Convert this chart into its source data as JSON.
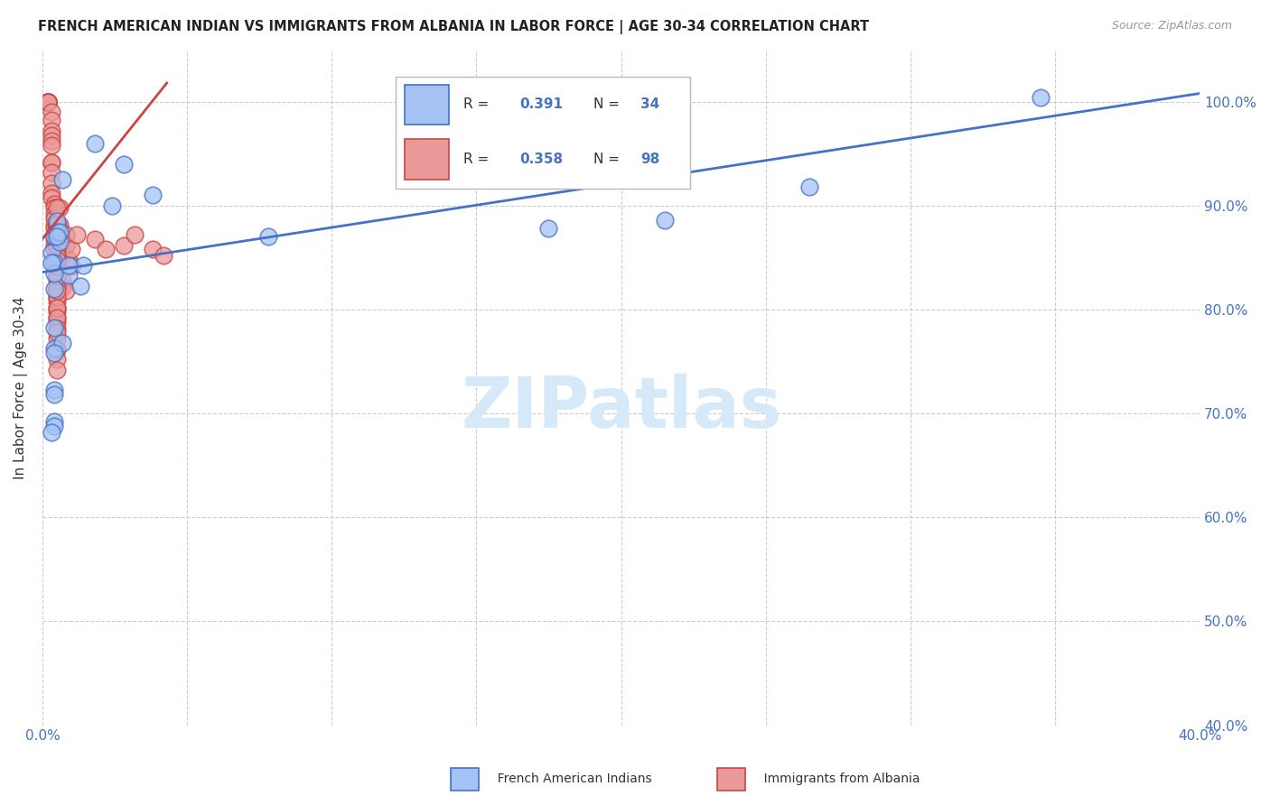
{
  "title": "FRENCH AMERICAN INDIAN VS IMMIGRANTS FROM ALBANIA IN LABOR FORCE | AGE 30-34 CORRELATION CHART",
  "source": "Source: ZipAtlas.com",
  "ylabel": "In Labor Force | Age 30-34",
  "xlim": [
    0.0,
    0.4
  ],
  "ylim": [
    0.4,
    1.05
  ],
  "xtick_positions": [
    0.0,
    0.05,
    0.1,
    0.15,
    0.2,
    0.25,
    0.3,
    0.35,
    0.4
  ],
  "xticklabels": [
    "0.0%",
    "",
    "",
    "",
    "",
    "",
    "",
    "",
    "40.0%"
  ],
  "ytick_positions": [
    0.4,
    0.5,
    0.6,
    0.7,
    0.8,
    0.9,
    1.0
  ],
  "yticklabels": [
    "40.0%",
    "50.0%",
    "60.0%",
    "70.0%",
    "80.0%",
    "90.0%",
    "100.0%"
  ],
  "legend_val1": "0.391",
  "legend_nval1": "34",
  "legend_val2": "0.358",
  "legend_nval2": "98",
  "color_blue_fill": "#a4c2f4",
  "color_pink_fill": "#ea9999",
  "color_blue_edge": "#4472c4",
  "color_pink_edge": "#cc4444",
  "color_blue_line": "#4472c4",
  "color_pink_line": "#cc4444",
  "color_axis_text": "#4472c4",
  "watermark_color": "#d6e9f8",
  "blue_scatter_x": [
    0.003,
    0.005,
    0.007,
    0.004,
    0.006,
    0.018,
    0.028,
    0.004,
    0.009,
    0.014,
    0.024,
    0.038,
    0.078,
    0.004,
    0.009,
    0.004,
    0.007,
    0.013,
    0.004,
    0.004,
    0.004,
    0.004,
    0.004,
    0.004,
    0.003,
    0.004,
    0.005,
    0.006,
    0.005,
    0.175,
    0.215,
    0.265,
    0.345,
    0.003
  ],
  "blue_scatter_y": [
    0.855,
    0.885,
    0.925,
    0.845,
    0.865,
    0.96,
    0.94,
    0.82,
    0.833,
    0.843,
    0.9,
    0.91,
    0.87,
    0.835,
    0.843,
    0.763,
    0.768,
    0.823,
    0.783,
    0.758,
    0.723,
    0.718,
    0.692,
    0.688,
    0.845,
    0.87,
    0.875,
    0.875,
    0.87,
    0.878,
    0.886,
    0.918,
    1.004,
    0.682
  ],
  "pink_scatter_x": [
    0.002,
    0.002,
    0.002,
    0.002,
    0.002,
    0.002,
    0.002,
    0.002,
    0.002,
    0.002,
    0.002,
    0.002,
    0.003,
    0.003,
    0.003,
    0.003,
    0.003,
    0.003,
    0.003,
    0.003,
    0.003,
    0.003,
    0.003,
    0.003,
    0.004,
    0.004,
    0.004,
    0.004,
    0.004,
    0.004,
    0.004,
    0.004,
    0.004,
    0.004,
    0.005,
    0.005,
    0.005,
    0.005,
    0.005,
    0.005,
    0.005,
    0.005,
    0.005,
    0.005,
    0.005,
    0.005,
    0.005,
    0.005,
    0.006,
    0.006,
    0.006,
    0.006,
    0.007,
    0.007,
    0.007,
    0.008,
    0.008,
    0.008,
    0.009,
    0.01,
    0.012,
    0.01,
    0.018,
    0.022,
    0.028,
    0.032,
    0.038,
    0.042,
    0.005,
    0.005,
    0.005,
    0.005,
    0.005,
    0.005,
    0.005,
    0.005,
    0.005,
    0.005,
    0.005,
    0.005,
    0.005,
    0.005,
    0.005,
    0.005,
    0.005,
    0.005,
    0.005,
    0.005,
    0.005,
    0.005,
    0.005,
    0.005,
    0.005,
    0.005,
    0.005,
    0.005,
    0.005,
    0.005
  ],
  "pink_scatter_y": [
    1.0,
    1.0,
    1.0,
    1.0,
    1.0,
    1.0,
    1.0,
    1.0,
    1.0,
    1.0,
    1.0,
    1.0,
    0.99,
    0.982,
    0.972,
    0.968,
    0.962,
    0.958,
    0.942,
    0.942,
    0.932,
    0.922,
    0.912,
    0.908,
    0.902,
    0.898,
    0.892,
    0.888,
    0.882,
    0.878,
    0.872,
    0.868,
    0.862,
    0.858,
    0.852,
    0.848,
    0.842,
    0.838,
    0.832,
    0.828,
    0.822,
    0.818,
    0.812,
    0.808,
    0.802,
    0.798,
    0.792,
    0.788,
    0.858,
    0.878,
    0.882,
    0.898,
    0.838,
    0.828,
    0.822,
    0.818,
    0.862,
    0.872,
    0.848,
    0.858,
    0.872,
    0.842,
    0.868,
    0.858,
    0.862,
    0.872,
    0.858,
    0.852,
    0.832,
    0.842,
    0.822,
    0.812,
    0.802,
    0.792,
    0.782,
    0.772,
    0.762,
    0.752,
    0.742,
    0.762,
    0.778,
    0.818,
    0.868,
    0.882,
    0.832,
    0.842,
    0.848,
    0.878,
    0.862,
    0.872,
    0.858,
    0.862,
    0.878,
    0.882,
    0.898,
    0.882,
    0.852,
    0.848
  ],
  "blue_line_x": [
    0.0,
    0.4
  ],
  "blue_line_y": [
    0.836,
    1.008
  ],
  "pink_line_x": [
    0.0,
    0.043
  ],
  "pink_line_y": [
    0.868,
    1.018
  ]
}
